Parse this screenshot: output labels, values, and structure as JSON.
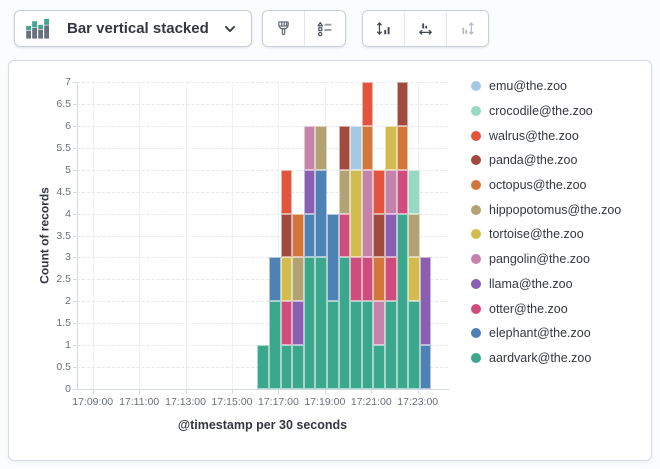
{
  "toolbar": {
    "chart_type_button": {
      "label": "Bar vertical stacked",
      "icon": "bar-vertical-stacked-icon",
      "chevron_icon": "chevron-down-icon"
    },
    "style_group_icons": [
      "brush-icon",
      "legend-values-icon"
    ],
    "axis_group_icons": [
      "left-axis-icon",
      "bottom-axis-icon",
      "right-axis-icon"
    ],
    "right_axis_disabled": true
  },
  "chart_data": {
    "type": "bar",
    "stacked": true,
    "orientation": "vertical",
    "ylabel": "Count of records",
    "xlabel": "@timestamp per 30 seconds",
    "ylim": [
      0,
      7
    ],
    "y_tick_step": 0.5,
    "y_ticks": [
      "0",
      "0.5",
      "1",
      "1.5",
      "2",
      "2.5",
      "3",
      "3.5",
      "4",
      "4.5",
      "5",
      "5.5",
      "6",
      "6.5",
      "7"
    ],
    "x_gridline_labels": [
      "17:09:00",
      "17:11:00",
      "17:13:00",
      "17:15:00",
      "17:17:00",
      "17:19:00",
      "17:21:00",
      "17:23:00"
    ],
    "categories": [
      "17:16:00",
      "17:16:30",
      "17:17:00",
      "17:17:30",
      "17:18:00",
      "17:18:30",
      "17:19:00",
      "17:19:30",
      "17:20:00",
      "17:20:30",
      "17:21:00",
      "17:21:30",
      "17:22:00",
      "17:22:30",
      "17:23:00"
    ],
    "legend_position": "right",
    "grid": true,
    "series": [
      {
        "name": "emu@the.zoo",
        "color": "#A3C9E2",
        "values": [
          0,
          0,
          0,
          0,
          0,
          0,
          0,
          0,
          1,
          0,
          0,
          0,
          0,
          0,
          0
        ]
      },
      {
        "name": "crocodile@the.zoo",
        "color": "#98D9C4",
        "values": [
          0,
          0,
          0,
          0,
          0,
          0,
          0,
          0,
          0,
          0,
          0,
          0,
          0,
          1,
          0
        ]
      },
      {
        "name": "walrus@the.zoo",
        "color": "#E2543E",
        "values": [
          0,
          0,
          1,
          0,
          0,
          0,
          0,
          0,
          0,
          1,
          1,
          0,
          0,
          0,
          0
        ]
      },
      {
        "name": "panda@the.zoo",
        "color": "#A04B3D",
        "values": [
          0,
          0,
          1,
          0,
          0,
          0,
          0,
          1,
          0,
          0,
          1,
          0,
          1,
          0,
          0
        ]
      },
      {
        "name": "octopus@the.zoo",
        "color": "#D3763B",
        "values": [
          0,
          0,
          0,
          1,
          0,
          0,
          0,
          0,
          0,
          1,
          1,
          0,
          1,
          0,
          0
        ]
      },
      {
        "name": "hippopotomus@the.zoo",
        "color": "#B2A274",
        "values": [
          0,
          0,
          0,
          1,
          0,
          1,
          0,
          1,
          0,
          0,
          0,
          0,
          0,
          1,
          0
        ]
      },
      {
        "name": "tortoise@the.zoo",
        "color": "#D3BC4E",
        "values": [
          0,
          0,
          1,
          0,
          0,
          0,
          0,
          0,
          2,
          0,
          0,
          1,
          0,
          1,
          0
        ]
      },
      {
        "name": "pangolin@the.zoo",
        "color": "#C583AC",
        "values": [
          0,
          0,
          0,
          0,
          1,
          0,
          0,
          0,
          0,
          2,
          1,
          1,
          0,
          0,
          0
        ]
      },
      {
        "name": "llama@the.zoo",
        "color": "#8A5EB0",
        "values": [
          0,
          0,
          0,
          1,
          1,
          0,
          0,
          0,
          0,
          0,
          0,
          1,
          0,
          0,
          2
        ]
      },
      {
        "name": "otter@the.zoo",
        "color": "#CE4D7D",
        "values": [
          0,
          0,
          1,
          0,
          0,
          0,
          0,
          1,
          1,
          1,
          0,
          1,
          1,
          0,
          0
        ]
      },
      {
        "name": "elephant@the.zoo",
        "color": "#4E81B4",
        "values": [
          0,
          1,
          0,
          0,
          1,
          2,
          2,
          0,
          0,
          0,
          0,
          0,
          0,
          0,
          1
        ]
      },
      {
        "name": "aardvark@the.zoo",
        "color": "#3BA78D",
        "values": [
          1,
          2,
          1,
          1,
          3,
          3,
          2,
          3,
          2,
          2,
          1,
          2,
          4,
          2,
          0
        ]
      }
    ]
  }
}
